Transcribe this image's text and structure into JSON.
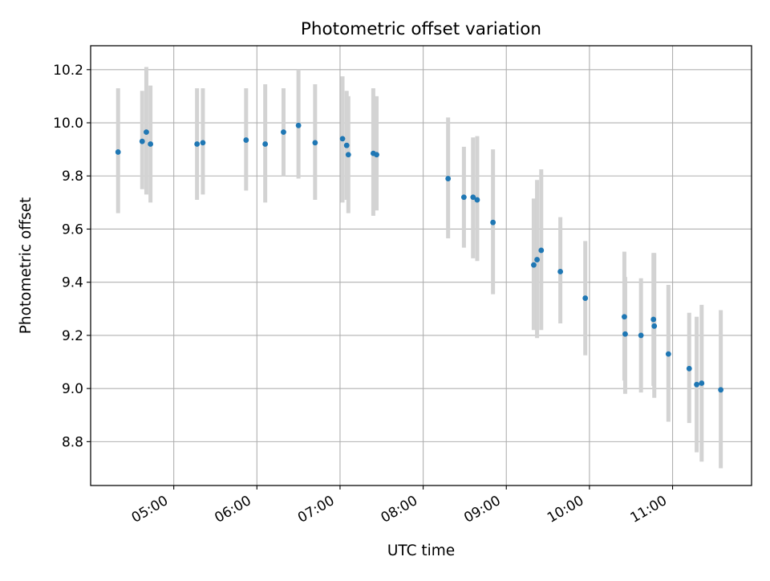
{
  "chart_data": {
    "type": "scatter",
    "title": "Photometric offset variation",
    "xlabel": "UTC time",
    "ylabel": "Photometric offset",
    "x_tick_labels": [
      "05:00",
      "06:00",
      "07:00",
      "08:00",
      "09:00",
      "10:00",
      "11:00"
    ],
    "x_tick_hours": [
      5,
      6,
      7,
      8,
      9,
      10,
      11
    ],
    "y_tick_labels": [
      "8.8",
      "9.0",
      "9.2",
      "9.4",
      "9.6",
      "9.8",
      "10.0",
      "10.2"
    ],
    "y_tick_values": [
      8.8,
      9.0,
      9.2,
      9.4,
      9.6,
      9.8,
      10.0,
      10.2
    ],
    "xlim_hours": [
      4.0,
      11.95
    ],
    "ylim": [
      8.635,
      10.29
    ],
    "grid": true,
    "colors": {
      "point": "#1f77b4",
      "errorbar": "#d3d3d3",
      "grid": "#b0b0b0"
    },
    "points": [
      {
        "t": 4.33,
        "y": 9.89,
        "lo": 9.66,
        "hi": 10.13
      },
      {
        "t": 4.62,
        "y": 9.93,
        "lo": 9.75,
        "hi": 10.12
      },
      {
        "t": 4.67,
        "y": 9.965,
        "lo": 9.73,
        "hi": 10.21
      },
      {
        "t": 4.72,
        "y": 9.92,
        "lo": 9.7,
        "hi": 10.14
      },
      {
        "t": 5.28,
        "y": 9.92,
        "lo": 9.71,
        "hi": 10.13
      },
      {
        "t": 5.35,
        "y": 9.925,
        "lo": 9.73,
        "hi": 10.13
      },
      {
        "t": 5.87,
        "y": 9.935,
        "lo": 9.745,
        "hi": 10.13
      },
      {
        "t": 6.1,
        "y": 9.92,
        "lo": 9.7,
        "hi": 10.145
      },
      {
        "t": 6.32,
        "y": 9.965,
        "lo": 9.8,
        "hi": 10.13
      },
      {
        "t": 6.5,
        "y": 9.99,
        "lo": 9.79,
        "hi": 10.2
      },
      {
        "t": 6.7,
        "y": 9.925,
        "lo": 9.71,
        "hi": 10.145
      },
      {
        "t": 7.03,
        "y": 9.94,
        "lo": 9.7,
        "hi": 10.175
      },
      {
        "t": 7.08,
        "y": 9.915,
        "lo": 9.71,
        "hi": 10.12
      },
      {
        "t": 7.1,
        "y": 9.88,
        "lo": 9.66,
        "hi": 10.1
      },
      {
        "t": 7.4,
        "y": 9.885,
        "lo": 9.65,
        "hi": 10.13
      },
      {
        "t": 7.44,
        "y": 9.88,
        "lo": 9.67,
        "hi": 10.1
      },
      {
        "t": 8.3,
        "y": 9.79,
        "lo": 9.565,
        "hi": 10.02
      },
      {
        "t": 8.49,
        "y": 9.72,
        "lo": 9.53,
        "hi": 9.91
      },
      {
        "t": 8.6,
        "y": 9.72,
        "lo": 9.49,
        "hi": 9.945
      },
      {
        "t": 8.65,
        "y": 9.71,
        "lo": 9.48,
        "hi": 9.95
      },
      {
        "t": 8.84,
        "y": 9.625,
        "lo": 9.355,
        "hi": 9.9
      },
      {
        "t": 9.33,
        "y": 9.465,
        "lo": 9.22,
        "hi": 9.715
      },
      {
        "t": 9.37,
        "y": 9.485,
        "lo": 9.19,
        "hi": 9.785
      },
      {
        "t": 9.42,
        "y": 9.52,
        "lo": 9.22,
        "hi": 9.825
      },
      {
        "t": 9.65,
        "y": 9.44,
        "lo": 9.245,
        "hi": 9.645
      },
      {
        "t": 9.95,
        "y": 9.34,
        "lo": 9.125,
        "hi": 9.555
      },
      {
        "t": 10.42,
        "y": 9.27,
        "lo": 9.03,
        "hi": 9.515
      },
      {
        "t": 10.43,
        "y": 9.205,
        "lo": 8.98,
        "hi": 9.42
      },
      {
        "t": 10.62,
        "y": 9.2,
        "lo": 8.985,
        "hi": 9.415
      },
      {
        "t": 10.77,
        "y": 9.26,
        "lo": 9.01,
        "hi": 9.51
      },
      {
        "t": 10.78,
        "y": 9.235,
        "lo": 8.965,
        "hi": 9.51
      },
      {
        "t": 10.95,
        "y": 9.13,
        "lo": 8.875,
        "hi": 9.39
      },
      {
        "t": 11.2,
        "y": 9.075,
        "lo": 8.87,
        "hi": 9.285
      },
      {
        "t": 11.29,
        "y": 9.015,
        "lo": 8.76,
        "hi": 9.27
      },
      {
        "t": 11.35,
        "y": 9.02,
        "lo": 8.725,
        "hi": 9.315
      },
      {
        "t": 11.58,
        "y": 8.995,
        "lo": 8.7,
        "hi": 9.295
      }
    ]
  }
}
